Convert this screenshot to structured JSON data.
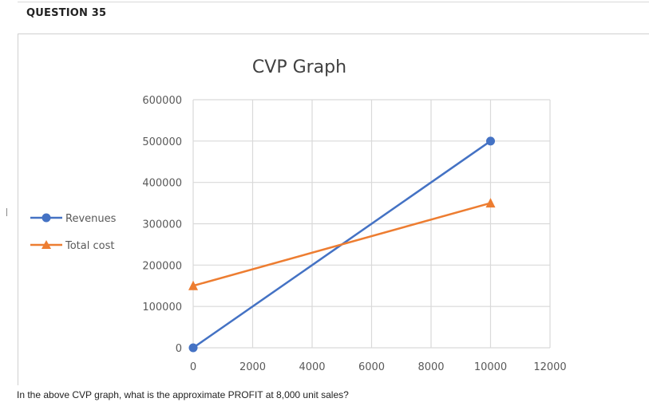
{
  "question": {
    "title": "QUESTION 35",
    "text": "In the above CVP graph, what is the approximate PROFIT at 8,000 unit sales?"
  },
  "colors": {
    "revenues": "#4472C4",
    "total_cost": "#ED7D31",
    "grid": "#D9D9D9"
  },
  "chart_data": {
    "type": "line",
    "title": "CVP Graph",
    "xlabel": "",
    "ylabel": "",
    "xlim": [
      0,
      12000
    ],
    "ylim": [
      0,
      600000
    ],
    "xticks": [
      "0",
      "2000",
      "4000",
      "6000",
      "8000",
      "10000",
      "12000"
    ],
    "yticks": [
      "0",
      "100000",
      "200000",
      "300000",
      "400000",
      "500000",
      "600000"
    ],
    "grid": true,
    "legend_position": "left",
    "series": [
      {
        "name": "Revenues",
        "marker": "circle",
        "x": [
          0,
          10000
        ],
        "y": [
          0,
          500000
        ]
      },
      {
        "name": "Total cost",
        "marker": "triangle",
        "x": [
          0,
          10000
        ],
        "y": [
          150000,
          350000
        ]
      }
    ]
  }
}
